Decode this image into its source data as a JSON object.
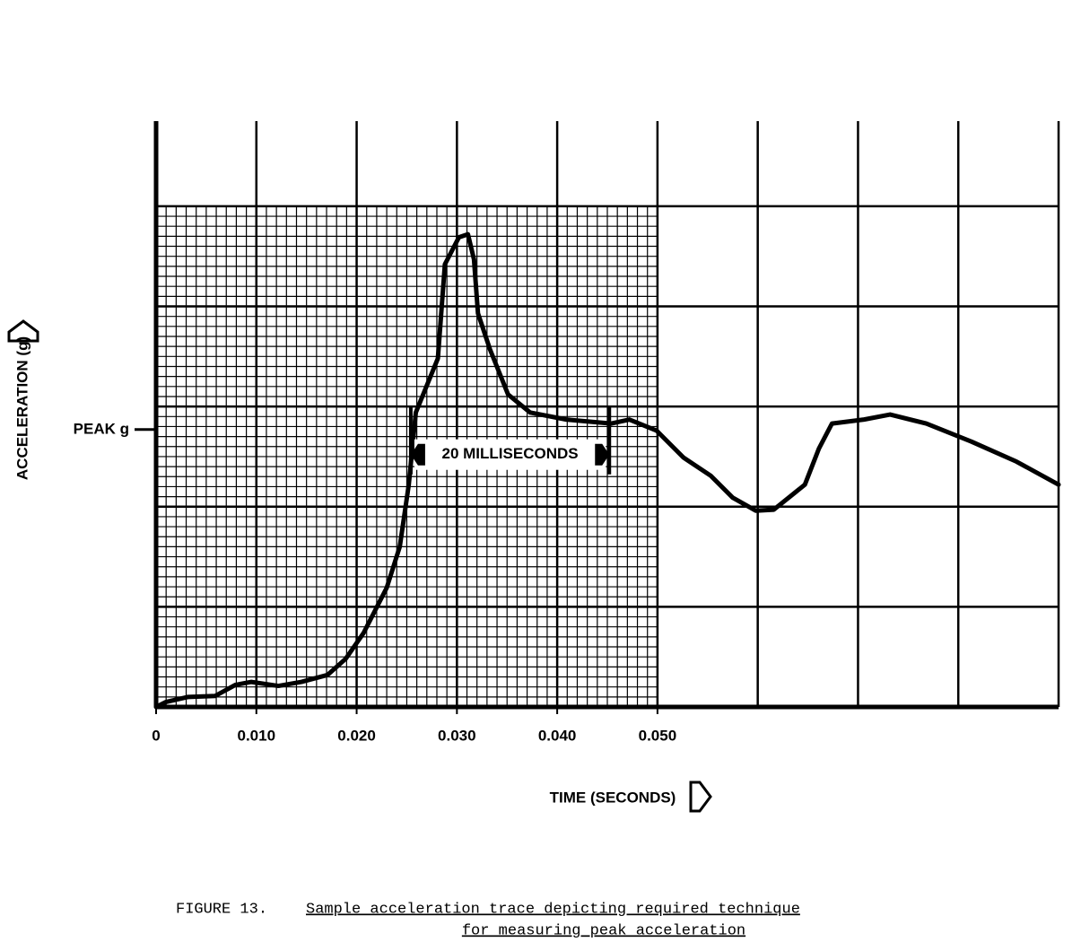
{
  "chart_data": {
    "type": "line",
    "x_label": "TIME (SECONDS)",
    "y_label": "ACCELERATION (g)",
    "xlim": [
      0,
      0.09
    ],
    "ylim": [
      0,
      5.85
    ],
    "xticks": [
      0,
      {
        "value": 0.01,
        "label": "0.010"
      },
      {
        "value": 0.02,
        "label": "0.020"
      },
      {
        "value": 0.03,
        "label": "0.030"
      },
      {
        "value": 0.04,
        "label": "0.040"
      },
      {
        "value": 0.05,
        "label": "0.050"
      }
    ],
    "x_gridlines": [
      0,
      0.01,
      0.02,
      0.03,
      0.04,
      0.05,
      0.06,
      0.07,
      0.08,
      0.09
    ],
    "y_gridlines": [
      0,
      1,
      2,
      3,
      4,
      5
    ],
    "fine_grid": {
      "xlim": [
        0,
        0.05
      ],
      "ylim": [
        0,
        5
      ],
      "divisions": 10
    },
    "color": "#000000",
    "x": [
      0,
      0.001,
      0.0032,
      0.0059,
      0.0079,
      0.0095,
      0.0122,
      0.0145,
      0.0171,
      0.0189,
      0.0207,
      0.023,
      0.0243,
      0.0252,
      0.0259,
      0.027,
      0.0281,
      0.0288,
      0.0302,
      0.0311,
      0.0317,
      0.0321,
      0.0333,
      0.0351,
      0.0373,
      0.0409,
      0.0454,
      0.0472,
      0.0499,
      0.0526,
      0.0553,
      0.0575,
      0.0598,
      0.0616,
      0.0647,
      0.0661,
      0.0674,
      0.0706,
      0.0732,
      0.0768,
      0.0813,
      0.0858,
      0.09
    ],
    "values": [
      0,
      0.05,
      0.1,
      0.11,
      0.22,
      0.25,
      0.21,
      0.25,
      0.32,
      0.48,
      0.74,
      1.19,
      1.6,
      2.22,
      2.94,
      3.21,
      3.48,
      4.42,
      4.69,
      4.72,
      4.47,
      3.93,
      3.57,
      3.12,
      2.94,
      2.87,
      2.83,
      2.87,
      2.76,
      2.49,
      2.31,
      2.09,
      1.96,
      1.97,
      2.22,
      2.58,
      2.83,
      2.87,
      2.92,
      2.83,
      2.65,
      2.45,
      2.22
    ],
    "peak_label": {
      "text": "PEAK g",
      "value": 2.77
    },
    "annotation": {
      "text": "20 MILLISECONDS",
      "x0": 0.0254,
      "x1": 0.0452,
      "y": 2.52
    },
    "figure_label": "FIGURE 13.",
    "caption_lines": [
      "Sample acceleration trace depicting required technique",
      "for measuring peak acceleration"
    ]
  }
}
